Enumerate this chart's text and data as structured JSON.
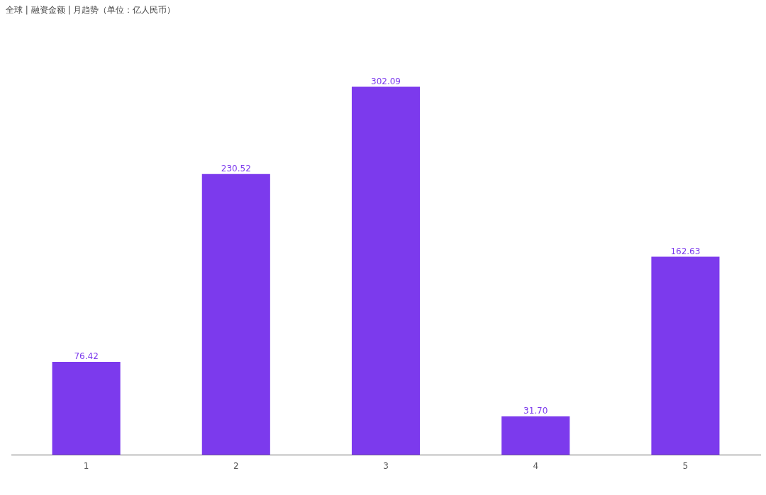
{
  "chart_data": {
    "type": "bar",
    "title": "全球 | 融资金额 | 月趋势（单位：亿人民币）",
    "categories": [
      "1",
      "2",
      "3",
      "4",
      "5"
    ],
    "values": [
      76.42,
      230.52,
      302.09,
      31.7,
      162.63
    ],
    "value_labels": [
      "76.42",
      "230.52",
      "302.09",
      "31.70",
      "162.63"
    ],
    "color": "#7c3aed",
    "relative": false,
    "grid": false,
    "legend": false
  }
}
